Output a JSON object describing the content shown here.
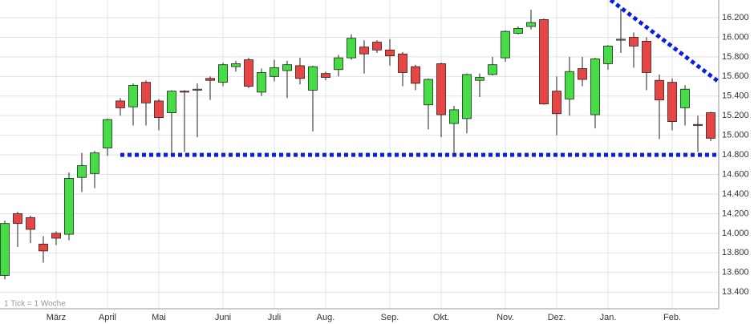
{
  "chart_data": {
    "type": "candlestick",
    "note_text": "1 Tick = 1 Woche",
    "categories": [
      null,
      null,
      null,
      null,
      "März",
      null,
      null,
      null,
      "April",
      null,
      null,
      null,
      "Mai",
      null,
      null,
      null,
      null,
      "Juni",
      null,
      null,
      null,
      "Juli",
      null,
      null,
      null,
      "Aug.",
      null,
      null,
      null,
      null,
      "Sep.",
      null,
      null,
      null,
      "Okt.",
      null,
      null,
      null,
      null,
      "Nov.",
      null,
      null,
      null,
      "Dez.",
      null,
      null,
      null,
      "Jan.",
      null,
      null,
      null,
      null,
      "Feb.",
      null,
      null,
      null
    ],
    "open": [
      13.57,
      14.2,
      14.16,
      13.89,
      14.0,
      13.99,
      14.57,
      14.61,
      14.87,
      15.35,
      15.29,
      15.54,
      15.35,
      15.23,
      15.45,
      15.46,
      15.58,
      15.54,
      15.7,
      15.77,
      15.44,
      15.6,
      15.66,
      15.71,
      15.46,
      15.63,
      15.67,
      15.79,
      15.9,
      15.95,
      15.87,
      15.83,
      15.7,
      15.31,
      15.73,
      15.12,
      15.17,
      15.56,
      15.62,
      15.79,
      16.04,
      16.11,
      16.18,
      15.45,
      15.37,
      15.68,
      15.21,
      15.73,
      15.97,
      16.0,
      15.96,
      15.56,
      15.54,
      15.28,
      15.11,
      15.23
    ],
    "high": [
      14.13,
      14.22,
      14.18,
      13.97,
      14.02,
      14.62,
      14.82,
      14.84,
      15.17,
      15.38,
      15.53,
      15.56,
      15.37,
      15.46,
      15.46,
      15.53,
      15.6,
      15.74,
      15.76,
      15.79,
      15.68,
      15.77,
      15.76,
      15.79,
      15.71,
      15.65,
      15.82,
      16.03,
      15.97,
      15.97,
      15.98,
      15.85,
      15.72,
      15.58,
      15.74,
      15.3,
      15.63,
      15.63,
      15.8,
      16.07,
      16.11,
      16.28,
      16.19,
      15.6,
      15.8,
      15.8,
      15.79,
      15.92,
      16.29,
      16.05,
      16.0,
      15.62,
      15.58,
      15.51,
      15.2,
      15.24
    ],
    "low": [
      13.53,
      13.86,
      13.9,
      13.7,
      13.88,
      13.93,
      14.42,
      14.46,
      14.79,
      15.2,
      15.1,
      15.1,
      15.05,
      14.82,
      14.83,
      14.98,
      15.36,
      15.5,
      15.65,
      15.48,
      15.4,
      15.55,
      15.38,
      15.52,
      15.04,
      15.56,
      15.6,
      15.77,
      15.63,
      15.84,
      15.71,
      15.5,
      15.46,
      15.06,
      14.98,
      14.82,
      15.02,
      15.39,
      15.61,
      15.75,
      16.03,
      16.08,
      15.31,
      15.0,
      15.2,
      15.5,
      15.07,
      15.67,
      15.84,
      15.69,
      15.46,
      14.96,
      15.05,
      15.1,
      14.83,
      14.94
    ],
    "close": [
      14.1,
      14.1,
      14.04,
      13.82,
      13.95,
      14.56,
      14.69,
      14.82,
      15.16,
      15.28,
      15.51,
      15.33,
      15.18,
      15.45,
      15.44,
      15.47,
      15.56,
      15.72,
      15.73,
      15.5,
      15.64,
      15.69,
      15.72,
      15.58,
      15.7,
      15.59,
      15.79,
      15.99,
      15.83,
      15.87,
      15.81,
      15.64,
      15.53,
      15.57,
      15.21,
      15.26,
      15.62,
      15.59,
      15.72,
      16.06,
      16.09,
      16.15,
      15.32,
      15.22,
      15.65,
      15.57,
      15.78,
      15.91,
      15.98,
      15.91,
      15.64,
      15.36,
      15.14,
      15.47,
      15.1,
      14.97
    ],
    "up_color": "#44dd44",
    "down_color": "#e84444",
    "support_line": {
      "value": 14.8,
      "color": "#0a1ee0"
    },
    "trend_line": {
      "x": [
        47.2,
        57.5
      ],
      "values": [
        16.38,
        15.36
      ],
      "color": "#0a1ee0"
    },
    "ylim": [
      13.23,
      16.38
    ],
    "yticks": [
      {
        "value": 13.4,
        "label": "13.400"
      },
      {
        "value": 13.6,
        "label": "13.600"
      },
      {
        "value": 13.8,
        "label": "13.800"
      },
      {
        "value": 14.0,
        "label": "14.000"
      },
      {
        "value": 14.2,
        "label": "14.200"
      },
      {
        "value": 14.4,
        "label": "14.400"
      },
      {
        "value": 14.6,
        "label": "14.600"
      },
      {
        "value": 14.8,
        "label": "14.800"
      },
      {
        "value": 15.0,
        "label": "15.000"
      },
      {
        "value": 15.2,
        "label": "15.200"
      },
      {
        "value": 15.4,
        "label": "15.400"
      },
      {
        "value": 15.6,
        "label": "15.600"
      },
      {
        "value": 15.8,
        "label": "15.800"
      },
      {
        "value": 16.0,
        "label": "16.000"
      },
      {
        "value": 16.2,
        "label": "16.200"
      }
    ],
    "grid": true
  }
}
